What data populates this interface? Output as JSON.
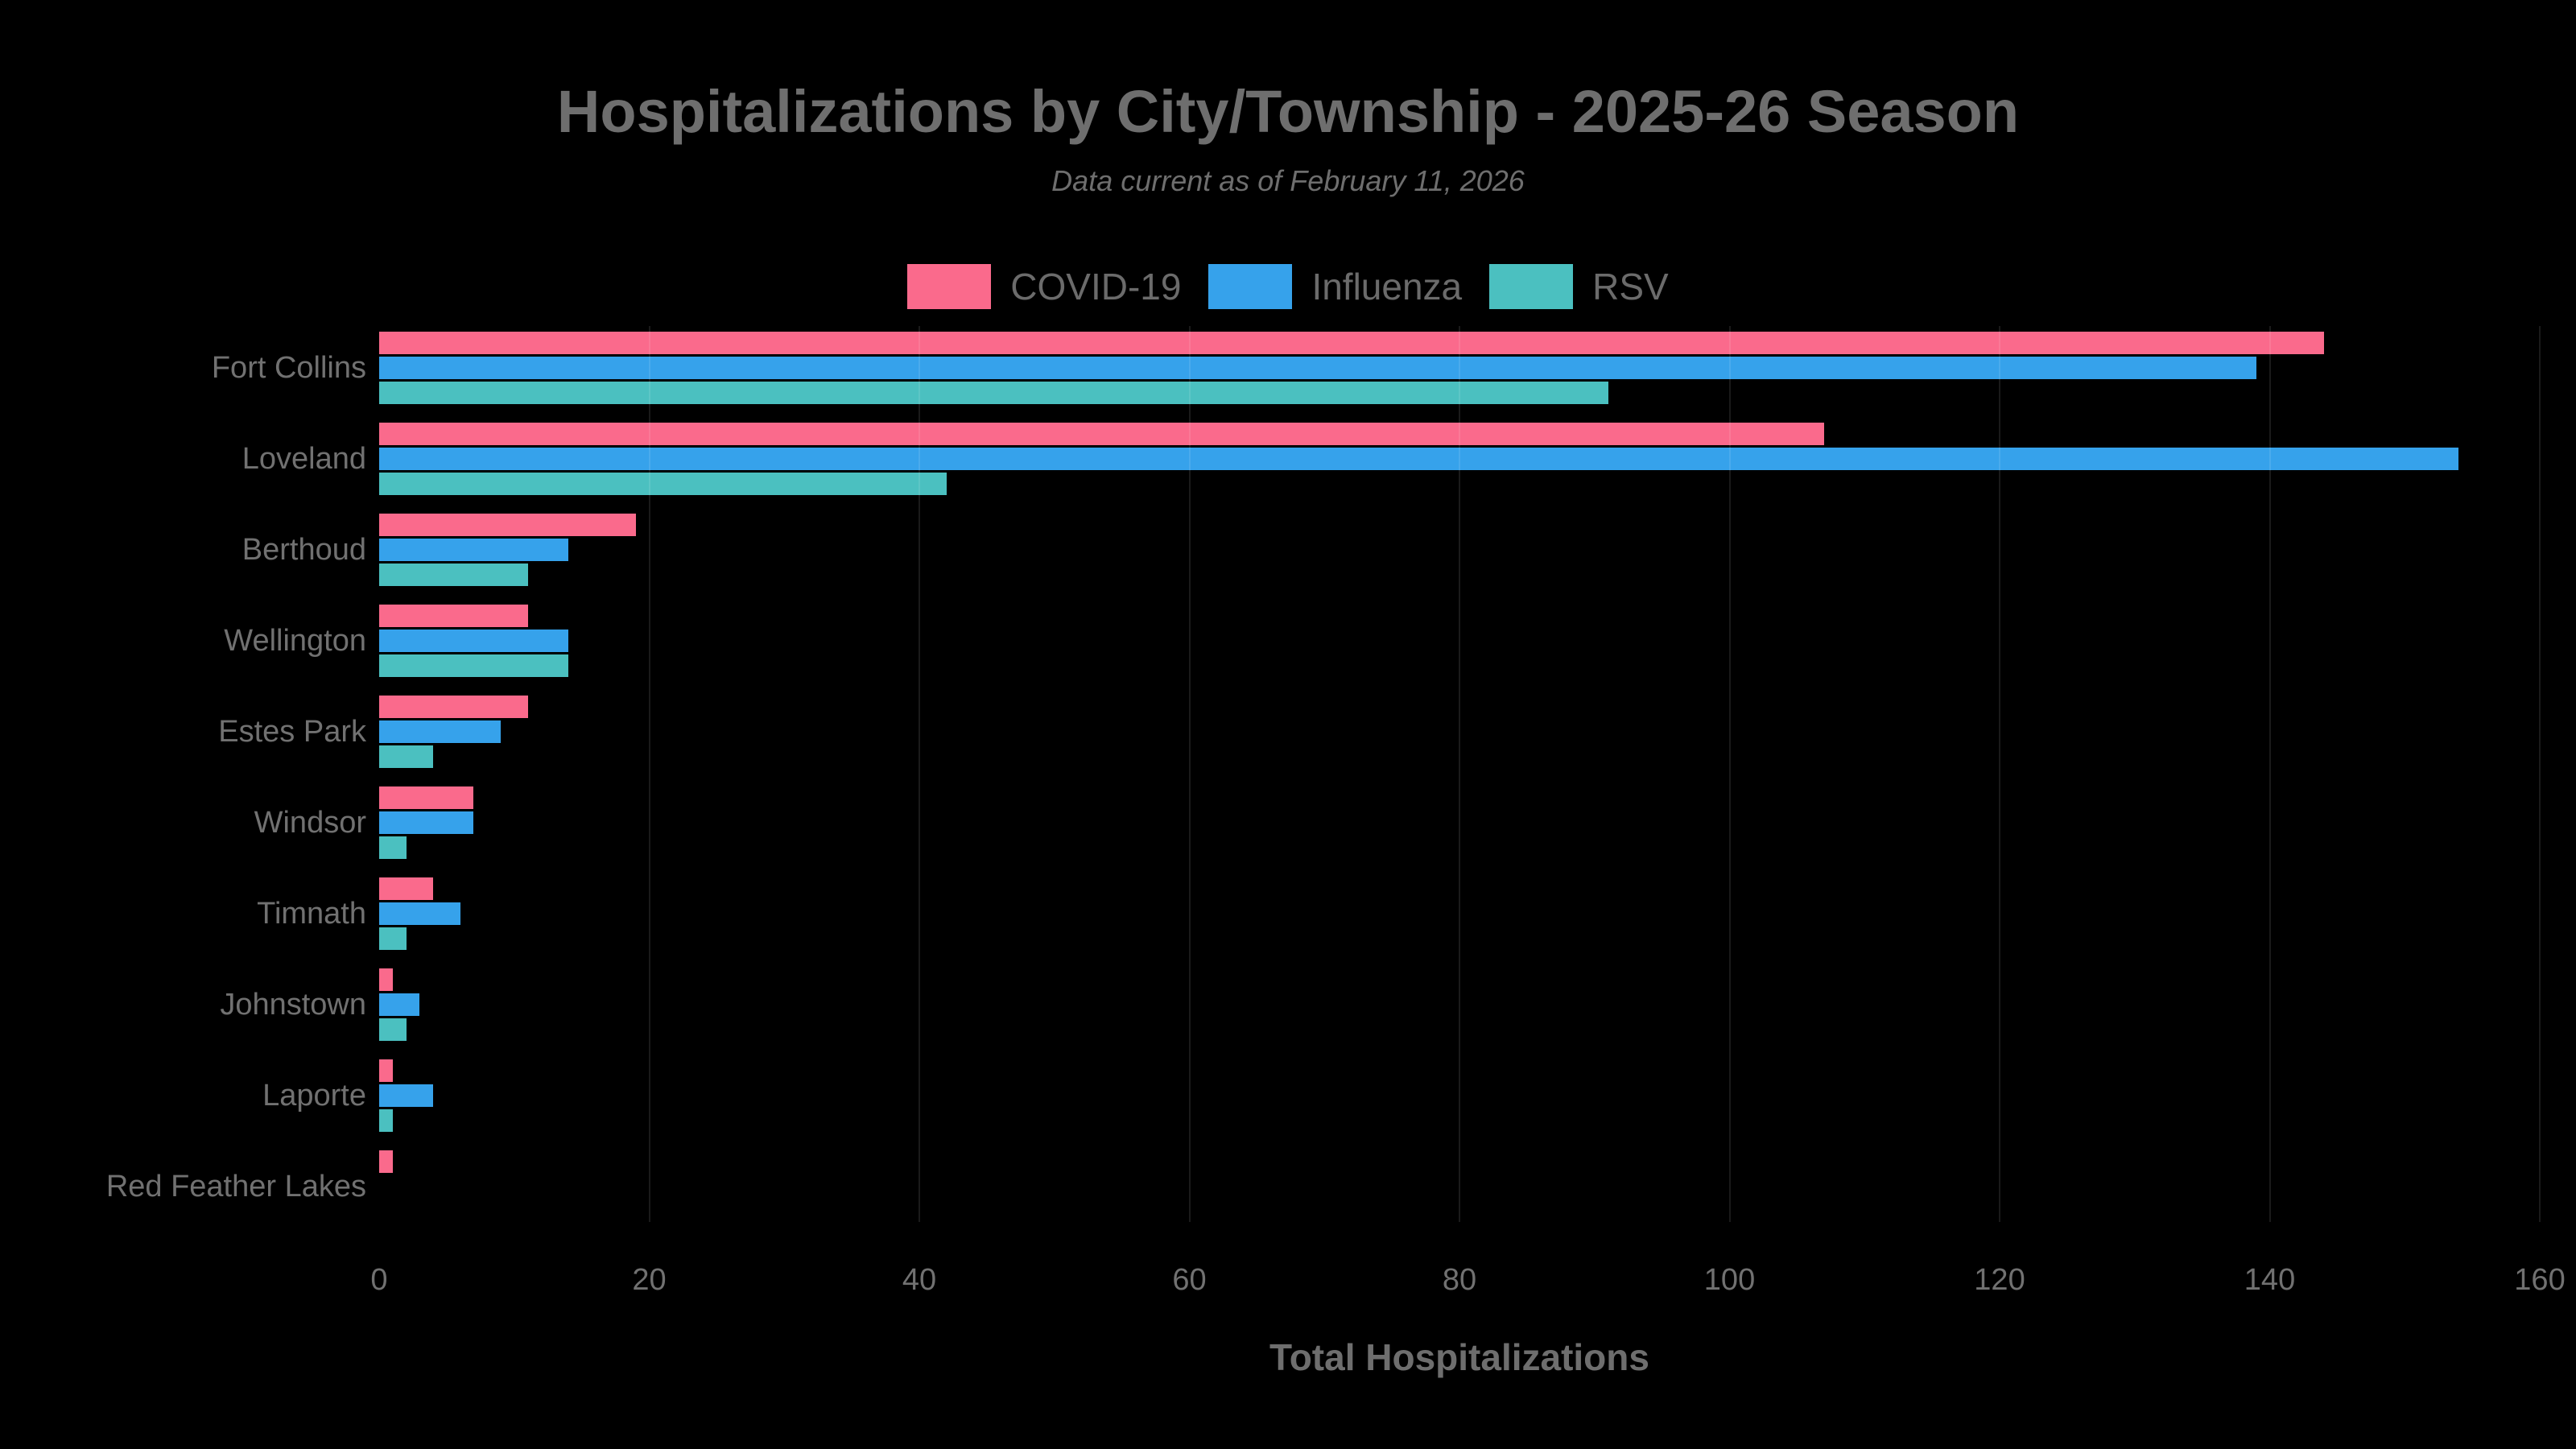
{
  "colors": {
    "background": "#000000",
    "title_text": "#6E6E6E",
    "label_text": "#717171",
    "covid": "#FA6A8C",
    "influenza": "#36A2EB",
    "rsv": "#4BC0C0"
  },
  "chart_data": {
    "type": "bar",
    "orientation": "horizontal",
    "title": "Hospitalizations by City/Township - 2025-26 Season",
    "subtitle": "Data current as of February 11, 2026",
    "xlabel": "Total Hospitalizations",
    "ylabel": "",
    "xlim": [
      0,
      160
    ],
    "x_ticks": [
      0,
      20,
      40,
      60,
      80,
      100,
      120,
      140,
      160
    ],
    "grid": "subtle vertical gridlines, visible only over bars",
    "legend_position": "top-center",
    "background": "black",
    "categories": [
      "Fort Collins",
      "Loveland",
      "Berthoud",
      "Wellington",
      "Estes Park",
      "Windsor",
      "Timnath",
      "Johnstown",
      "Laporte",
      "Red Feather Lakes"
    ],
    "series": [
      {
        "name": "COVID-19",
        "color": "#FA6A8C",
        "values": [
          144,
          107,
          19,
          11,
          11,
          7,
          4,
          1,
          1,
          1
        ]
      },
      {
        "name": "Influenza",
        "color": "#36A2EB",
        "values": [
          139,
          154,
          14,
          14,
          9,
          7,
          6,
          3,
          4,
          0
        ]
      },
      {
        "name": "RSV",
        "color": "#4BC0C0",
        "values": [
          91,
          42,
          11,
          14,
          4,
          2,
          2,
          2,
          1,
          0
        ]
      }
    ]
  }
}
